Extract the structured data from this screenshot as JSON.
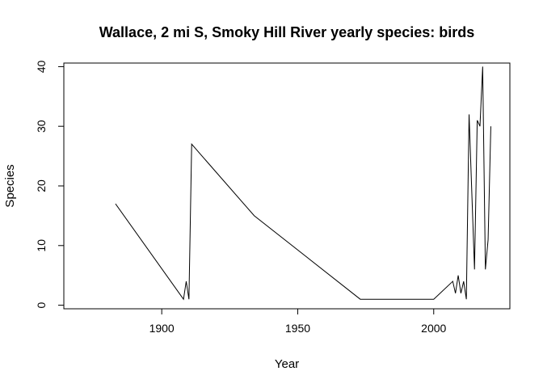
{
  "chart_data": {
    "type": "line",
    "title": "Wallace, 2 mi S, Smoky Hill River yearly species: birds",
    "xlabel": "Year",
    "ylabel": "Species",
    "xlim": [
      1864,
      2028
    ],
    "ylim": [
      -0.6,
      40.6
    ],
    "xticks": [
      1900,
      1950,
      2000
    ],
    "yticks": [
      0,
      10,
      20,
      30,
      40
    ],
    "grid": false,
    "x": [
      1883,
      1908,
      1909,
      1910,
      1911,
      1934,
      1973,
      2000,
      2007,
      2008,
      2009,
      2010,
      2011,
      2012,
      2013,
      2015,
      2016,
      2017,
      2018,
      2019,
      2020,
      2021
    ],
    "y": [
      17,
      1,
      4,
      1,
      27,
      15,
      1,
      1,
      4,
      2,
      5,
      2,
      4,
      1,
      32,
      6,
      31,
      30,
      40,
      6,
      11,
      30
    ]
  }
}
